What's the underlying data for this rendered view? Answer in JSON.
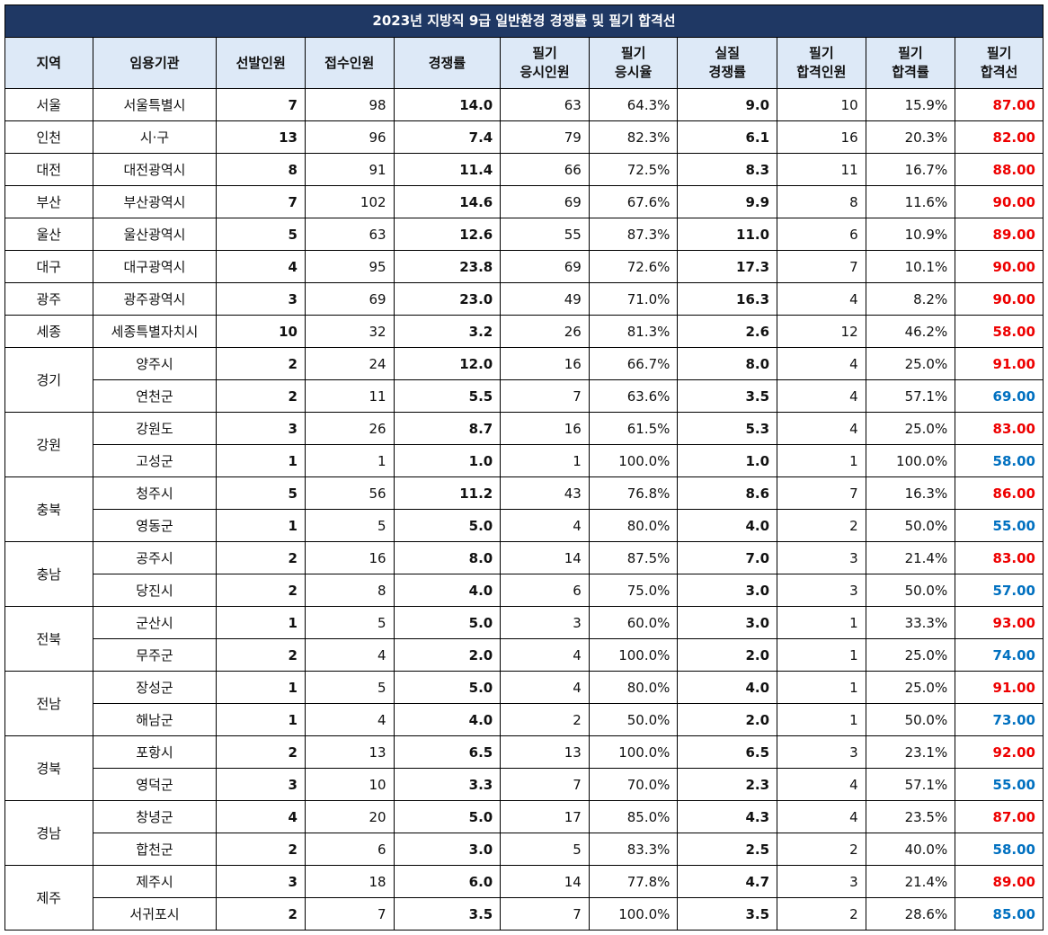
{
  "title": "2023년 지방직 9급 일반환경 경쟁률 및 필기 합격선",
  "headers": [
    "지역",
    "임용기관",
    "선발인원",
    "접수인원",
    "경쟁률",
    "필기\n응시인원",
    "필기\n응시율",
    "실질\n경쟁률",
    "필기\n합격인원",
    "필기\n합격률",
    "필기\n합격선"
  ],
  "colors": {
    "title_bg": "#1f3864",
    "header_bg": "#dde9f7",
    "high_cutoff": "#ee0000",
    "low_cutoff": "#0070c0"
  },
  "regions": [
    {
      "region": "서울",
      "rows": [
        {
          "agency": "서울특별시",
          "select": "7",
          "apply": "98",
          "ratio": "14.0",
          "exam_n": "63",
          "exam_rate": "64.3%",
          "real_ratio": "9.0",
          "pass_n": "10",
          "pass_rate": "15.9%",
          "cutoff": "87.00",
          "cutoff_color": "red"
        }
      ]
    },
    {
      "region": "인천",
      "rows": [
        {
          "agency": "시·구",
          "select": "13",
          "apply": "96",
          "ratio": "7.4",
          "exam_n": "79",
          "exam_rate": "82.3%",
          "real_ratio": "6.1",
          "pass_n": "16",
          "pass_rate": "20.3%",
          "cutoff": "82.00",
          "cutoff_color": "red"
        }
      ]
    },
    {
      "region": "대전",
      "rows": [
        {
          "agency": "대전광역시",
          "select": "8",
          "apply": "91",
          "ratio": "11.4",
          "exam_n": "66",
          "exam_rate": "72.5%",
          "real_ratio": "8.3",
          "pass_n": "11",
          "pass_rate": "16.7%",
          "cutoff": "88.00",
          "cutoff_color": "red"
        }
      ]
    },
    {
      "region": "부산",
      "rows": [
        {
          "agency": "부산광역시",
          "select": "7",
          "apply": "102",
          "ratio": "14.6",
          "exam_n": "69",
          "exam_rate": "67.6%",
          "real_ratio": "9.9",
          "pass_n": "8",
          "pass_rate": "11.6%",
          "cutoff": "90.00",
          "cutoff_color": "red"
        }
      ]
    },
    {
      "region": "울산",
      "rows": [
        {
          "agency": "울산광역시",
          "select": "5",
          "apply": "63",
          "ratio": "12.6",
          "exam_n": "55",
          "exam_rate": "87.3%",
          "real_ratio": "11.0",
          "pass_n": "6",
          "pass_rate": "10.9%",
          "cutoff": "89.00",
          "cutoff_color": "red"
        }
      ]
    },
    {
      "region": "대구",
      "rows": [
        {
          "agency": "대구광역시",
          "select": "4",
          "apply": "95",
          "ratio": "23.8",
          "exam_n": "69",
          "exam_rate": "72.6%",
          "real_ratio": "17.3",
          "pass_n": "7",
          "pass_rate": "10.1%",
          "cutoff": "90.00",
          "cutoff_color": "red"
        }
      ]
    },
    {
      "region": "광주",
      "rows": [
        {
          "agency": "광주광역시",
          "select": "3",
          "apply": "69",
          "ratio": "23.0",
          "exam_n": "49",
          "exam_rate": "71.0%",
          "real_ratio": "16.3",
          "pass_n": "4",
          "pass_rate": "8.2%",
          "cutoff": "90.00",
          "cutoff_color": "red"
        }
      ]
    },
    {
      "region": "세종",
      "rows": [
        {
          "agency": "세종특별자치시",
          "select": "10",
          "apply": "32",
          "ratio": "3.2",
          "exam_n": "26",
          "exam_rate": "81.3%",
          "real_ratio": "2.6",
          "pass_n": "12",
          "pass_rate": "46.2%",
          "cutoff": "58.00",
          "cutoff_color": "red"
        }
      ]
    },
    {
      "region": "경기",
      "rows": [
        {
          "agency": "양주시",
          "select": "2",
          "apply": "24",
          "ratio": "12.0",
          "exam_n": "16",
          "exam_rate": "66.7%",
          "real_ratio": "8.0",
          "pass_n": "4",
          "pass_rate": "25.0%",
          "cutoff": "91.00",
          "cutoff_color": "red"
        },
        {
          "agency": "연천군",
          "select": "2",
          "apply": "11",
          "ratio": "5.5",
          "exam_n": "7",
          "exam_rate": "63.6%",
          "real_ratio": "3.5",
          "pass_n": "4",
          "pass_rate": "57.1%",
          "cutoff": "69.00",
          "cutoff_color": "blue"
        }
      ]
    },
    {
      "region": "강원",
      "rows": [
        {
          "agency": "강원도",
          "select": "3",
          "apply": "26",
          "ratio": "8.7",
          "exam_n": "16",
          "exam_rate": "61.5%",
          "real_ratio": "5.3",
          "pass_n": "4",
          "pass_rate": "25.0%",
          "cutoff": "83.00",
          "cutoff_color": "red"
        },
        {
          "agency": "고성군",
          "select": "1",
          "apply": "1",
          "ratio": "1.0",
          "exam_n": "1",
          "exam_rate": "100.0%",
          "real_ratio": "1.0",
          "pass_n": "1",
          "pass_rate": "100.0%",
          "cutoff": "58.00",
          "cutoff_color": "blue"
        }
      ]
    },
    {
      "region": "충북",
      "rows": [
        {
          "agency": "청주시",
          "select": "5",
          "apply": "56",
          "ratio": "11.2",
          "exam_n": "43",
          "exam_rate": "76.8%",
          "real_ratio": "8.6",
          "pass_n": "7",
          "pass_rate": "16.3%",
          "cutoff": "86.00",
          "cutoff_color": "red"
        },
        {
          "agency": "영동군",
          "select": "1",
          "apply": "5",
          "ratio": "5.0",
          "exam_n": "4",
          "exam_rate": "80.0%",
          "real_ratio": "4.0",
          "pass_n": "2",
          "pass_rate": "50.0%",
          "cutoff": "55.00",
          "cutoff_color": "blue"
        }
      ]
    },
    {
      "region": "충남",
      "rows": [
        {
          "agency": "공주시",
          "select": "2",
          "apply": "16",
          "ratio": "8.0",
          "exam_n": "14",
          "exam_rate": "87.5%",
          "real_ratio": "7.0",
          "pass_n": "3",
          "pass_rate": "21.4%",
          "cutoff": "83.00",
          "cutoff_color": "red"
        },
        {
          "agency": "당진시",
          "select": "2",
          "apply": "8",
          "ratio": "4.0",
          "exam_n": "6",
          "exam_rate": "75.0%",
          "real_ratio": "3.0",
          "pass_n": "3",
          "pass_rate": "50.0%",
          "cutoff": "57.00",
          "cutoff_color": "blue"
        }
      ]
    },
    {
      "region": "전북",
      "rows": [
        {
          "agency": "군산시",
          "select": "1",
          "apply": "5",
          "ratio": "5.0",
          "exam_n": "3",
          "exam_rate": "60.0%",
          "real_ratio": "3.0",
          "pass_n": "1",
          "pass_rate": "33.3%",
          "cutoff": "93.00",
          "cutoff_color": "red"
        },
        {
          "agency": "무주군",
          "select": "2",
          "apply": "4",
          "ratio": "2.0",
          "exam_n": "4",
          "exam_rate": "100.0%",
          "real_ratio": "2.0",
          "pass_n": "1",
          "pass_rate": "25.0%",
          "cutoff": "74.00",
          "cutoff_color": "blue"
        }
      ]
    },
    {
      "region": "전남",
      "rows": [
        {
          "agency": "장성군",
          "select": "1",
          "apply": "5",
          "ratio": "5.0",
          "exam_n": "4",
          "exam_rate": "80.0%",
          "real_ratio": "4.0",
          "pass_n": "1",
          "pass_rate": "25.0%",
          "cutoff": "91.00",
          "cutoff_color": "red"
        },
        {
          "agency": "해남군",
          "select": "1",
          "apply": "4",
          "ratio": "4.0",
          "exam_n": "2",
          "exam_rate": "50.0%",
          "real_ratio": "2.0",
          "pass_n": "1",
          "pass_rate": "50.0%",
          "cutoff": "73.00",
          "cutoff_color": "blue"
        }
      ]
    },
    {
      "region": "경북",
      "rows": [
        {
          "agency": "포항시",
          "select": "2",
          "apply": "13",
          "ratio": "6.5",
          "exam_n": "13",
          "exam_rate": "100.0%",
          "real_ratio": "6.5",
          "pass_n": "3",
          "pass_rate": "23.1%",
          "cutoff": "92.00",
          "cutoff_color": "red"
        },
        {
          "agency": "영덕군",
          "select": "3",
          "apply": "10",
          "ratio": "3.3",
          "exam_n": "7",
          "exam_rate": "70.0%",
          "real_ratio": "2.3",
          "pass_n": "4",
          "pass_rate": "57.1%",
          "cutoff": "55.00",
          "cutoff_color": "blue"
        }
      ]
    },
    {
      "region": "경남",
      "rows": [
        {
          "agency": "창녕군",
          "select": "4",
          "apply": "20",
          "ratio": "5.0",
          "exam_n": "17",
          "exam_rate": "85.0%",
          "real_ratio": "4.3",
          "pass_n": "4",
          "pass_rate": "23.5%",
          "cutoff": "87.00",
          "cutoff_color": "red"
        },
        {
          "agency": "합천군",
          "select": "2",
          "apply": "6",
          "ratio": "3.0",
          "exam_n": "5",
          "exam_rate": "83.3%",
          "real_ratio": "2.5",
          "pass_n": "2",
          "pass_rate": "40.0%",
          "cutoff": "58.00",
          "cutoff_color": "blue"
        }
      ]
    },
    {
      "region": "제주",
      "rows": [
        {
          "agency": "제주시",
          "select": "3",
          "apply": "18",
          "ratio": "6.0",
          "exam_n": "14",
          "exam_rate": "77.8%",
          "real_ratio": "4.7",
          "pass_n": "3",
          "pass_rate": "21.4%",
          "cutoff": "89.00",
          "cutoff_color": "red"
        },
        {
          "agency": "서귀포시",
          "select": "2",
          "apply": "7",
          "ratio": "3.5",
          "exam_n": "7",
          "exam_rate": "100.0%",
          "real_ratio": "3.5",
          "pass_n": "2",
          "pass_rate": "28.6%",
          "cutoff": "85.00",
          "cutoff_color": "blue"
        }
      ]
    }
  ]
}
